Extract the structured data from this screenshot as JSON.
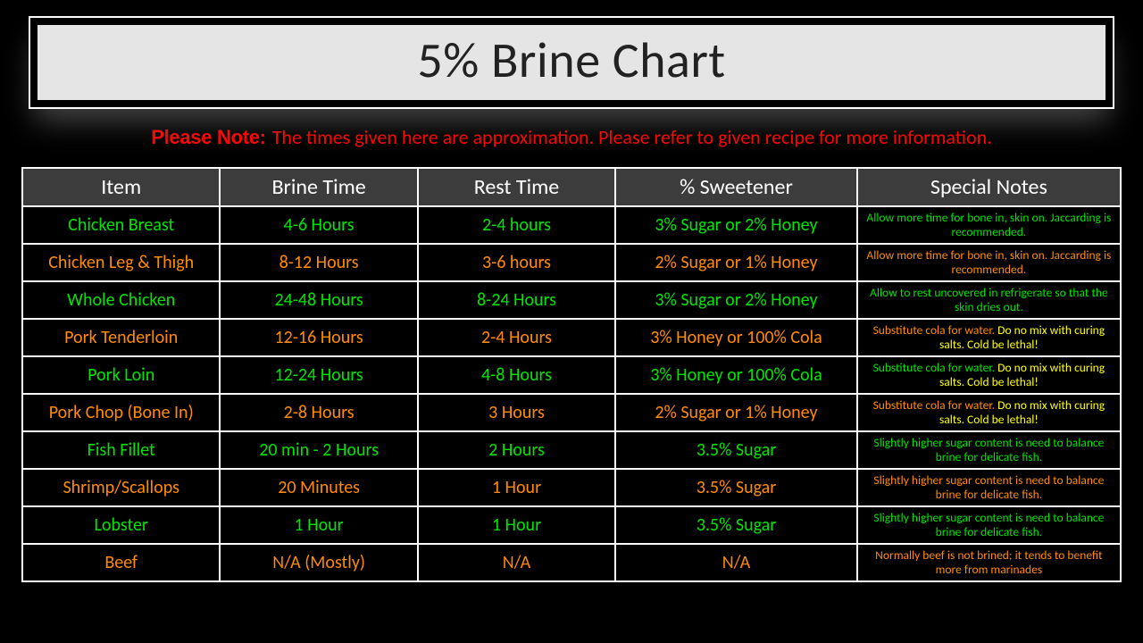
{
  "title": "5% Brine Chart",
  "note_bold": "Please Note:",
  "note_text": " The times given here are approximation. Please refer to given recipe for more information.",
  "colors": {
    "background": "#000000",
    "title_bg": "#e5e5e5",
    "title_text": "#222222",
    "header_bg": "#3c3c3c",
    "header_text": "#ffffff",
    "border": "#ffffff",
    "note": "#ff0000",
    "row_green": "#00e400",
    "row_orange": "#ff8c00",
    "emphasis": "#ffff00"
  },
  "column_widths_pct": [
    18,
    18,
    18,
    22,
    24
  ],
  "headers": [
    "Item",
    "Brine Time",
    "Rest Time",
    "% Sweetener",
    "Special Notes"
  ],
  "rows": [
    {
      "color": "#00e400",
      "item": "Chicken Breast",
      "brine": "4-6 Hours",
      "rest": "2-4 hours",
      "sweet": "3% Sugar or 2% Honey",
      "notes": [
        {
          "t": "Allow more time for bone in, skin on. Jaccarding is recommended."
        }
      ]
    },
    {
      "color": "#ff8c00",
      "item": "Chicken Leg & Thigh",
      "brine": "8-12 Hours",
      "rest": "3-6 hours",
      "sweet": "2% Sugar or 1% Honey",
      "notes": [
        {
          "t": "Allow more time for bone in, skin on. Jaccarding is recommended."
        }
      ]
    },
    {
      "color": "#00e400",
      "item": "Whole Chicken",
      "brine": "24-48 Hours",
      "rest": "8-24 Hours",
      "sweet": "3% Sugar or 2% Honey",
      "notes": [
        {
          "t": "Allow to rest uncovered in refrigerate so that the skin dries out."
        }
      ]
    },
    {
      "color": "#ff8c00",
      "item": "Pork Tenderloin",
      "brine": "12-16 Hours",
      "rest": "2-4 Hours",
      "sweet": "3% Honey or 100% Cola",
      "notes": [
        {
          "t": "Substitute cola for water. "
        },
        {
          "t": "Do no mix with curing salts. Cold be lethal!",
          "emph": true
        }
      ]
    },
    {
      "color": "#00e400",
      "item": "Pork Loin",
      "brine": "12-24 Hours",
      "rest": "4-8 Hours",
      "sweet": "3% Honey or 100% Cola",
      "notes": [
        {
          "t": "Substitute cola for water. "
        },
        {
          "t": "Do no mix with curing salts. Cold be lethal!",
          "emph": true
        }
      ]
    },
    {
      "color": "#ff8c00",
      "item": "Pork Chop (Bone In)",
      "brine": "2-8 Hours",
      "rest": "3 Hours",
      "sweet": "2% Sugar or 1% Honey",
      "notes": [
        {
          "t": "Substitute cola for water. "
        },
        {
          "t": "Do no mix with curing salts. Cold be lethal!",
          "emph": true
        }
      ]
    },
    {
      "color": "#00e400",
      "item": "Fish Fillet",
      "brine": "20 min - 2 Hours",
      "rest": "2 Hours",
      "sweet": "3.5% Sugar",
      "notes": [
        {
          "t": "Slightly higher sugar content is need to balance brine for delicate fish."
        }
      ]
    },
    {
      "color": "#ff8c00",
      "item": "Shrimp/Scallops",
      "brine": "20 Minutes",
      "rest": "1 Hour",
      "sweet": "3.5% Sugar",
      "notes": [
        {
          "t": "Slightly higher sugar content is need to balance brine for delicate fish."
        }
      ]
    },
    {
      "color": "#00e400",
      "item": "Lobster",
      "brine": "1 Hour",
      "rest": "1 Hour",
      "sweet": "3.5% Sugar",
      "notes": [
        {
          "t": "Slightly higher sugar content is need to balance brine for delicate fish."
        }
      ]
    },
    {
      "color": "#ff8c00",
      "item": "Beef",
      "brine": "N/A (Mostly)",
      "rest": "N/A",
      "sweet": "N/A",
      "notes": [
        {
          "t": "Normally beef is not brined; it tends to benefit more from marinades"
        }
      ]
    }
  ]
}
